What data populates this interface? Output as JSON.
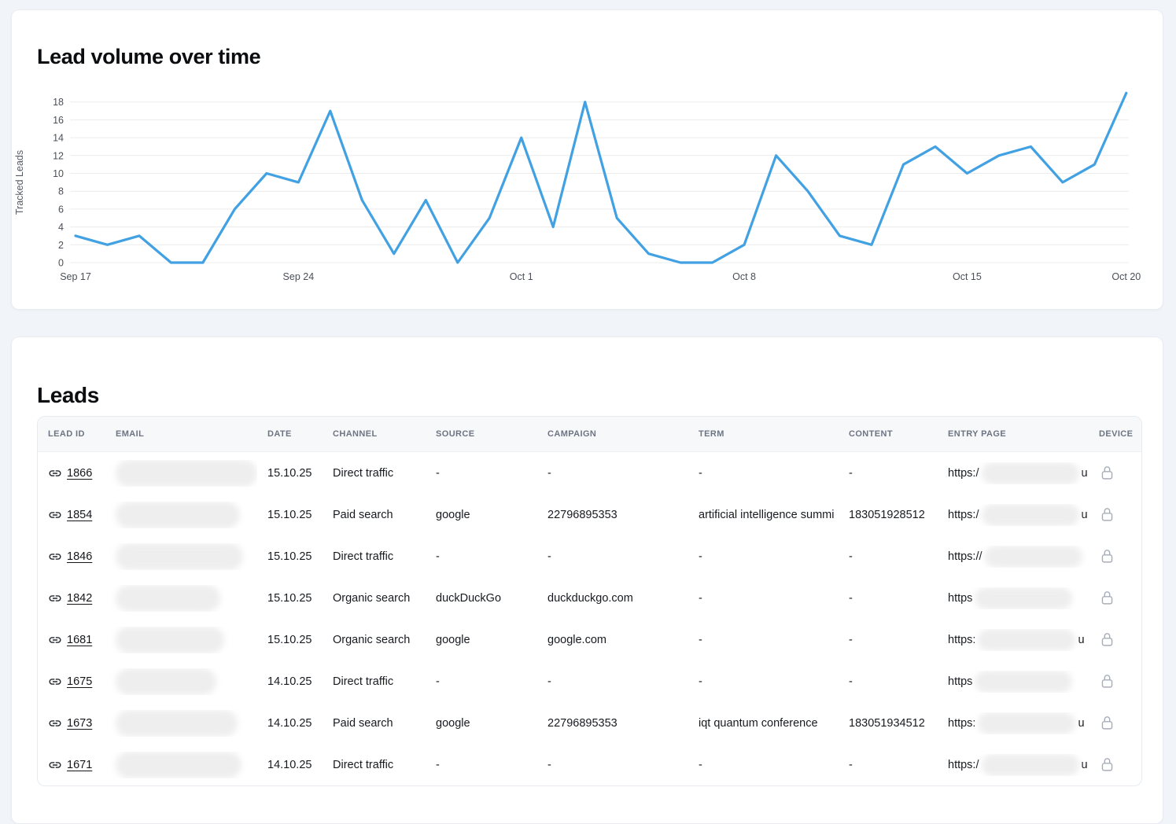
{
  "chart_data": {
    "type": "line",
    "title": "Lead volume over time",
    "ylabel": "Tracked Leads",
    "xlabel": "",
    "line_color": "#41a1e2",
    "grid": "horizontal",
    "legend": "none",
    "ylim": [
      0,
      19
    ],
    "y_ticks": [
      0,
      2,
      4,
      6,
      8,
      10,
      12,
      14,
      16,
      18
    ],
    "x_tick_labels": [
      "Sep 17",
      "Sep 24",
      "Oct 1",
      "Oct 8",
      "Oct 15",
      "Oct 20"
    ],
    "x_tick_indices": [
      0,
      7,
      14,
      21,
      28,
      33
    ],
    "x": [
      "Sep 17",
      "Sep 18",
      "Sep 19",
      "Sep 20",
      "Sep 21",
      "Sep 22",
      "Sep 23",
      "Sep 24",
      "Sep 25",
      "Sep 26",
      "Sep 27",
      "Sep 28",
      "Sep 29",
      "Sep 30",
      "Oct 1",
      "Oct 2",
      "Oct 3",
      "Oct 4",
      "Oct 5",
      "Oct 6",
      "Oct 7",
      "Oct 8",
      "Oct 9",
      "Oct 10",
      "Oct 11",
      "Oct 12",
      "Oct 13",
      "Oct 14",
      "Oct 15",
      "Oct 16",
      "Oct 17",
      "Oct 18",
      "Oct 19",
      "Oct 20"
    ],
    "values": [
      3,
      2,
      3,
      0,
      0,
      6,
      10,
      9,
      17,
      7,
      1,
      7,
      0,
      5,
      14,
      4,
      18,
      5,
      1,
      0,
      0,
      2,
      12,
      8,
      3,
      2,
      11,
      13,
      10,
      12,
      13,
      9,
      11,
      19
    ]
  },
  "leads": {
    "title": "Leads",
    "columns": [
      "LEAD ID",
      "EMAIL",
      "DATE",
      "CHANNEL",
      "SOURCE",
      "CAMPAIGN",
      "TERM",
      "CONTENT",
      "ENTRY PAGE",
      "DEVICE"
    ],
    "rows": [
      {
        "id": "1866",
        "email_redacted": true,
        "date": "15.10.25",
        "channel": "Direct traffic",
        "source": "-",
        "campaign": "-",
        "term": "-",
        "content": "-",
        "entry_prefix": "https:/",
        "entry_redacted": true,
        "entry_suffix": "u",
        "device_icon": "lock-icon"
      },
      {
        "id": "1854",
        "email_redacted": true,
        "date": "15.10.25",
        "channel": "Paid search",
        "source": "google",
        "campaign": "22796895353",
        "term": "artificial intelligence summi",
        "content": "183051928512",
        "entry_prefix": "https:/",
        "entry_redacted": true,
        "entry_suffix": "u",
        "device_icon": "lock-icon"
      },
      {
        "id": "1846",
        "email_redacted": true,
        "date": "15.10.25",
        "channel": "Direct traffic",
        "source": "-",
        "campaign": "-",
        "term": "-",
        "content": "-",
        "entry_prefix": "https://",
        "entry_redacted": true,
        "entry_suffix": "",
        "device_icon": "lock-icon"
      },
      {
        "id": "1842",
        "email_redacted": true,
        "date": "15.10.25",
        "channel": "Organic search",
        "source": "duckDuckGo",
        "campaign": "duckduckgo.com",
        "term": "-",
        "content": "-",
        "entry_prefix": "https",
        "entry_redacted": true,
        "entry_suffix": "",
        "device_icon": "lock-icon"
      },
      {
        "id": "1681",
        "email_redacted": true,
        "date": "15.10.25",
        "channel": "Organic search",
        "source": "google",
        "campaign": "google.com",
        "term": "-",
        "content": "-",
        "entry_prefix": "https:",
        "entry_redacted": true,
        "entry_suffix": "u",
        "device_icon": "lock-icon"
      },
      {
        "id": "1675",
        "email_redacted": true,
        "date": "14.10.25",
        "channel": "Direct traffic",
        "source": "-",
        "campaign": "-",
        "term": "-",
        "content": "-",
        "entry_prefix": "https",
        "entry_redacted": true,
        "entry_suffix": "",
        "device_icon": "lock-icon"
      },
      {
        "id": "1673",
        "email_redacted": true,
        "date": "14.10.25",
        "channel": "Paid search",
        "source": "google",
        "campaign": "22796895353",
        "term": "iqt quantum conference",
        "content": "183051934512",
        "entry_prefix": "https:",
        "entry_redacted": true,
        "entry_suffix": "u",
        "device_icon": "lock-icon"
      },
      {
        "id": "1671",
        "email_redacted": true,
        "date": "14.10.25",
        "channel": "Direct traffic",
        "source": "-",
        "campaign": "-",
        "term": "-",
        "content": "-",
        "entry_prefix": "https:/",
        "entry_redacted": true,
        "entry_suffix": "u",
        "device_icon": "lock-icon"
      }
    ]
  }
}
